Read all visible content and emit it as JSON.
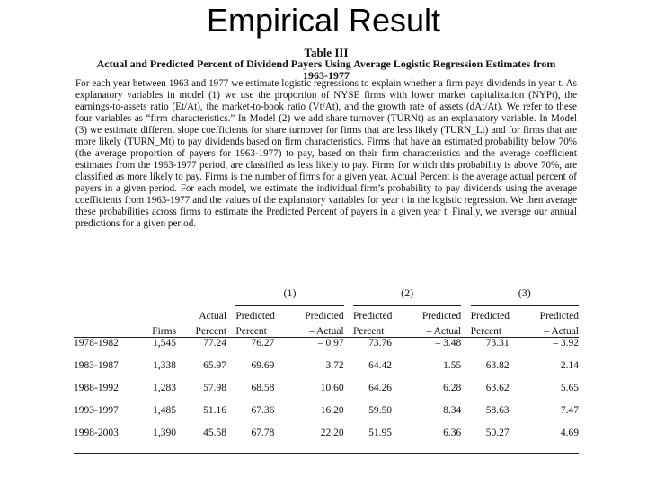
{
  "slide_title": "Empirical Result",
  "caption": {
    "number": "Table III",
    "title_line1": "Actual and Predicted Percent of Dividend Payers Using Average Logistic Regression Estimates from",
    "title_line2": "1963-1977"
  },
  "note": "For each year between 1963 and 1977 we estimate logistic regressions to explain whether a firm pays dividends in year t. As explanatory variables in model (1) we use the proportion of NYSE firms with lower market capitalization (NYPt), the earnings-to-assets ratio (Et/At), the market-to-book ratio (Vt/At), and the growth rate of assets (dAt/At). We refer to these four variables as “firm characteristics.” In Model (2) we add share turnover (TURNt) as an explanatory variable. In Model (3) we estimate different slope coefficients for share turnover for firms that are less likely (TURN_Lt) and for firms that are more likely (TURN_Mt) to pay dividends based on firm characteristics. Firms that have an estimated probability below 70% (the average proportion of payers for 1963-1977) to pay, based on their firm characteristics and the average coefficient estimates from the 1963-1977 period, are classified as less likely to pay. Firms for which this probability is above 70%, are classified as more likely to pay. Firms is the number of firms for a given year. Actual Percent is the average actual percent of payers in a given period. For each model, we estimate the individual firm’s probability to pay dividends using the average coefficients from 1963-1977 and the values of the explanatory variables for year t in the logistic regression. We then average these probabilities across firms to estimate the Predicted Percent of payers in a given year t. Finally, we average our annual predictions for a given period.",
  "table": {
    "models": [
      "(1)",
      "(2)",
      "(3)"
    ],
    "head1": {
      "actual": "Actual",
      "predicted": "Predicted",
      "predicted_minus": "Predicted"
    },
    "head2": {
      "firms": "Firms",
      "percent": "Percent",
      "percent_pred": "Percent",
      "minus_actual": "– Actual"
    },
    "rows": [
      {
        "period": "1978-1982",
        "firms": "1,545",
        "actual": "77.24",
        "m1_pred": "76.27",
        "m1_diff": "– 0.97",
        "m2_pred": "73.76",
        "m2_diff": "– 3.48",
        "m3_pred": "73.31",
        "m3_diff": "– 3.92"
      },
      {
        "period": "1983-1987",
        "firms": "1,338",
        "actual": "65.97",
        "m1_pred": "69.69",
        "m1_diff": "3.72",
        "m2_pred": "64.42",
        "m2_diff": "– 1.55",
        "m3_pred": "63.82",
        "m3_diff": "– 2.14"
      },
      {
        "period": "1988-1992",
        "firms": "1,283",
        "actual": "57.98",
        "m1_pred": "68.58",
        "m1_diff": "10.60",
        "m2_pred": "64.26",
        "m2_diff": "6.28",
        "m3_pred": "63.62",
        "m3_diff": "5.65"
      },
      {
        "period": "1993-1997",
        "firms": "1,485",
        "actual": "51.16",
        "m1_pred": "67.36",
        "m1_diff": "16.20",
        "m2_pred": "59.50",
        "m2_diff": "8.34",
        "m3_pred": "58.63",
        "m3_diff": "7.47"
      },
      {
        "period": "1998-2003",
        "firms": "1,390",
        "actual": "45.58",
        "m1_pred": "67.78",
        "m1_diff": "22.20",
        "m2_pred": "51.95",
        "m2_diff": "6.36",
        "m3_pred": "50.27",
        "m3_diff": "4.69"
      }
    ]
  }
}
